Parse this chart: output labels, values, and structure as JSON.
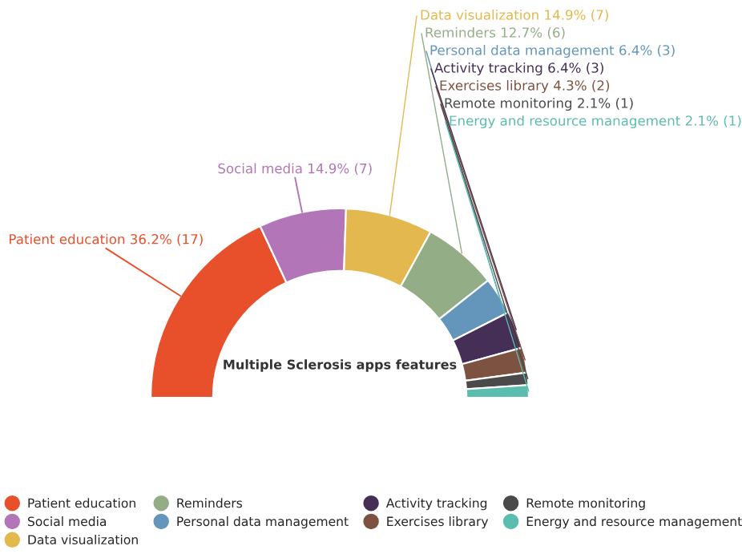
{
  "chart_data": {
    "type": "donut",
    "title": "Multiple Sclerosis apps features",
    "categories": [
      "Patient education",
      "Social media",
      "Data visualization",
      "Reminders",
      "Personal data management",
      "Activity tracking",
      "Exercises library",
      "Remote monitoring",
      "Energy and resource management"
    ],
    "values": [
      17,
      7,
      7,
      6,
      3,
      3,
      2,
      1,
      1
    ],
    "value_labels": [
      "36.2% (17)",
      "14.9% (7)",
      "14.9% (7)",
      "12.7% (6)",
      "6.4% (3)",
      "6.4% (3)",
      "4.3% (2)",
      "2.1% (1)",
      "2.1% (1)"
    ],
    "colors": [
      "#e8502b",
      "#b276b8",
      "#e3b84e",
      "#93ae86",
      "#6496bb",
      "#452f57",
      "#7e5240",
      "#4a4a4a",
      "#5bbcb0"
    ],
    "legend": "bottom"
  }
}
